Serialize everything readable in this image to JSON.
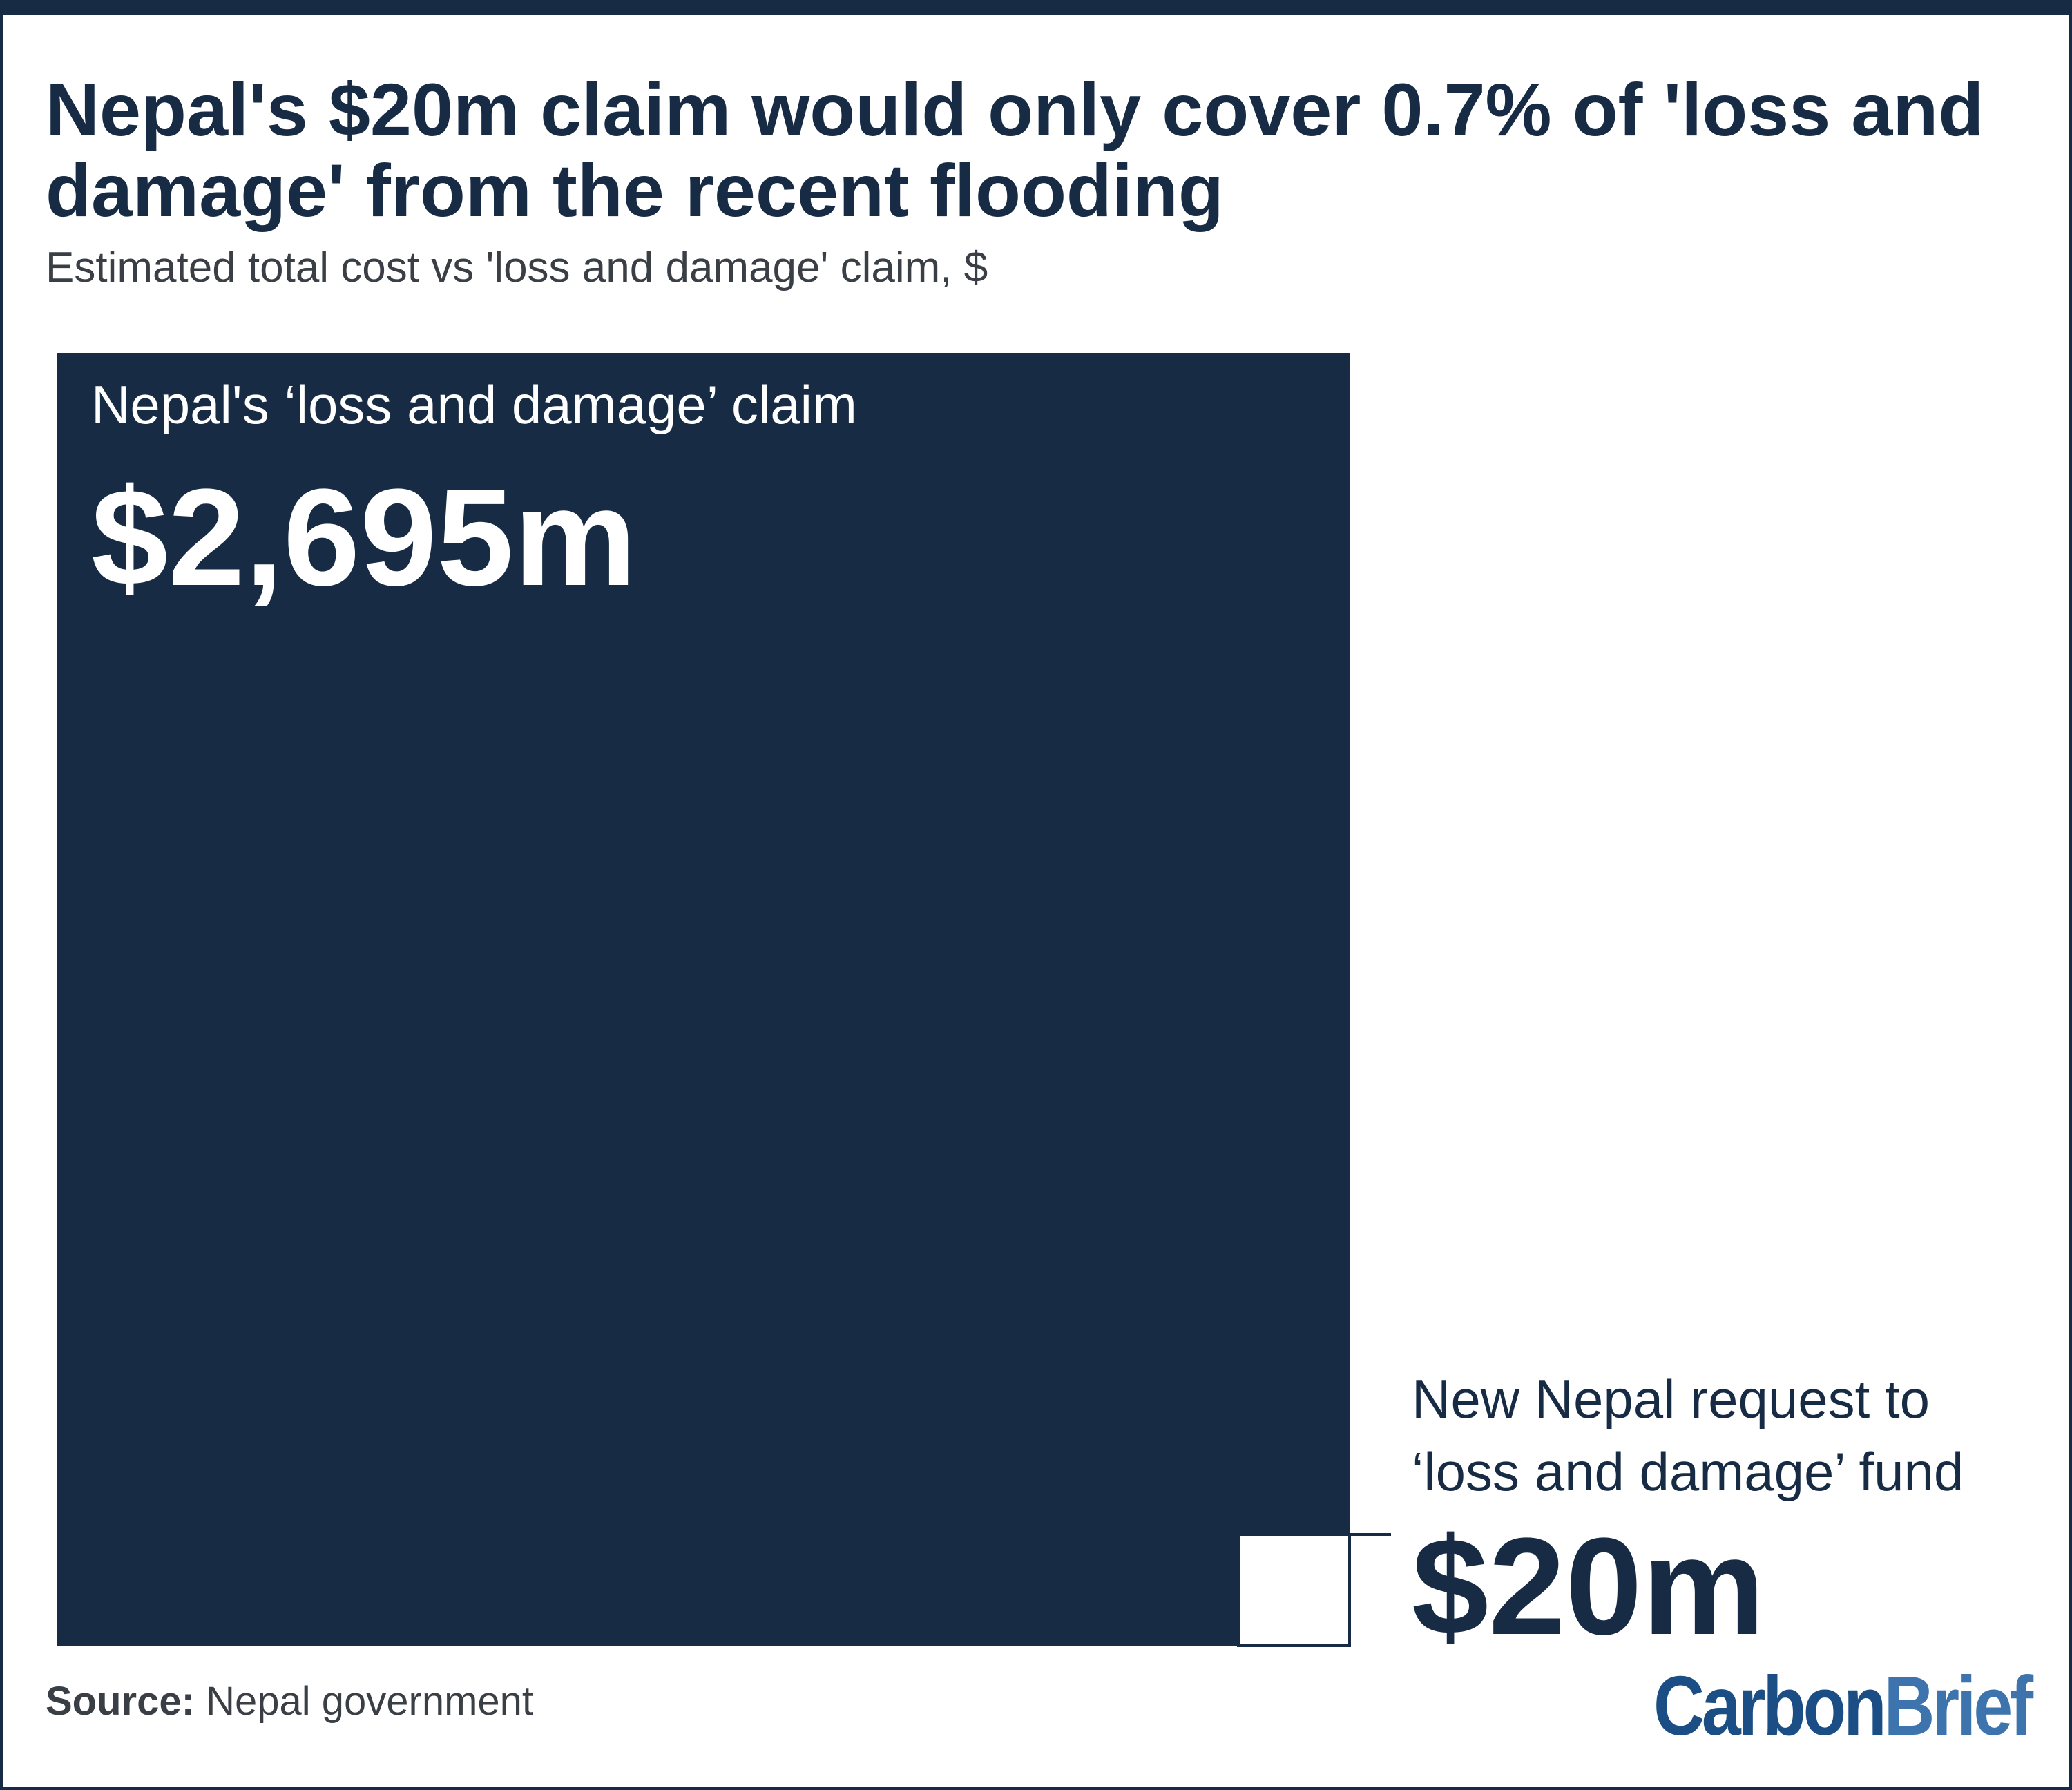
{
  "title": "Nepal's $20m claim would only cover 0.7% of 'loss and damage' from the recent flooding",
  "subtitle": "Estimated total cost vs 'loss and damage' claim, $",
  "source": {
    "label": "Source:",
    "text": "Nepal government"
  },
  "logo": {
    "part1": "Carbon",
    "part2": "Brief"
  },
  "colors": {
    "navy": "#172b45",
    "white": "#ffffff",
    "text": "#3a3f45",
    "logo": "#1b4e85",
    "logo_accent": "#3d74ad"
  },
  "chart_data": {
    "type": "proportional-area",
    "unit": "$m",
    "items": [
      {
        "label": "Nepal's ‘loss and damage’ claim",
        "value": 2695,
        "value_label": "$2,695m",
        "color": "#172b45"
      },
      {
        "label_lines": [
          "New Nepal request to",
          "‘loss and damage’ fund"
        ],
        "value": 20,
        "value_label": "$20m",
        "color": "#ffffff"
      }
    ]
  }
}
